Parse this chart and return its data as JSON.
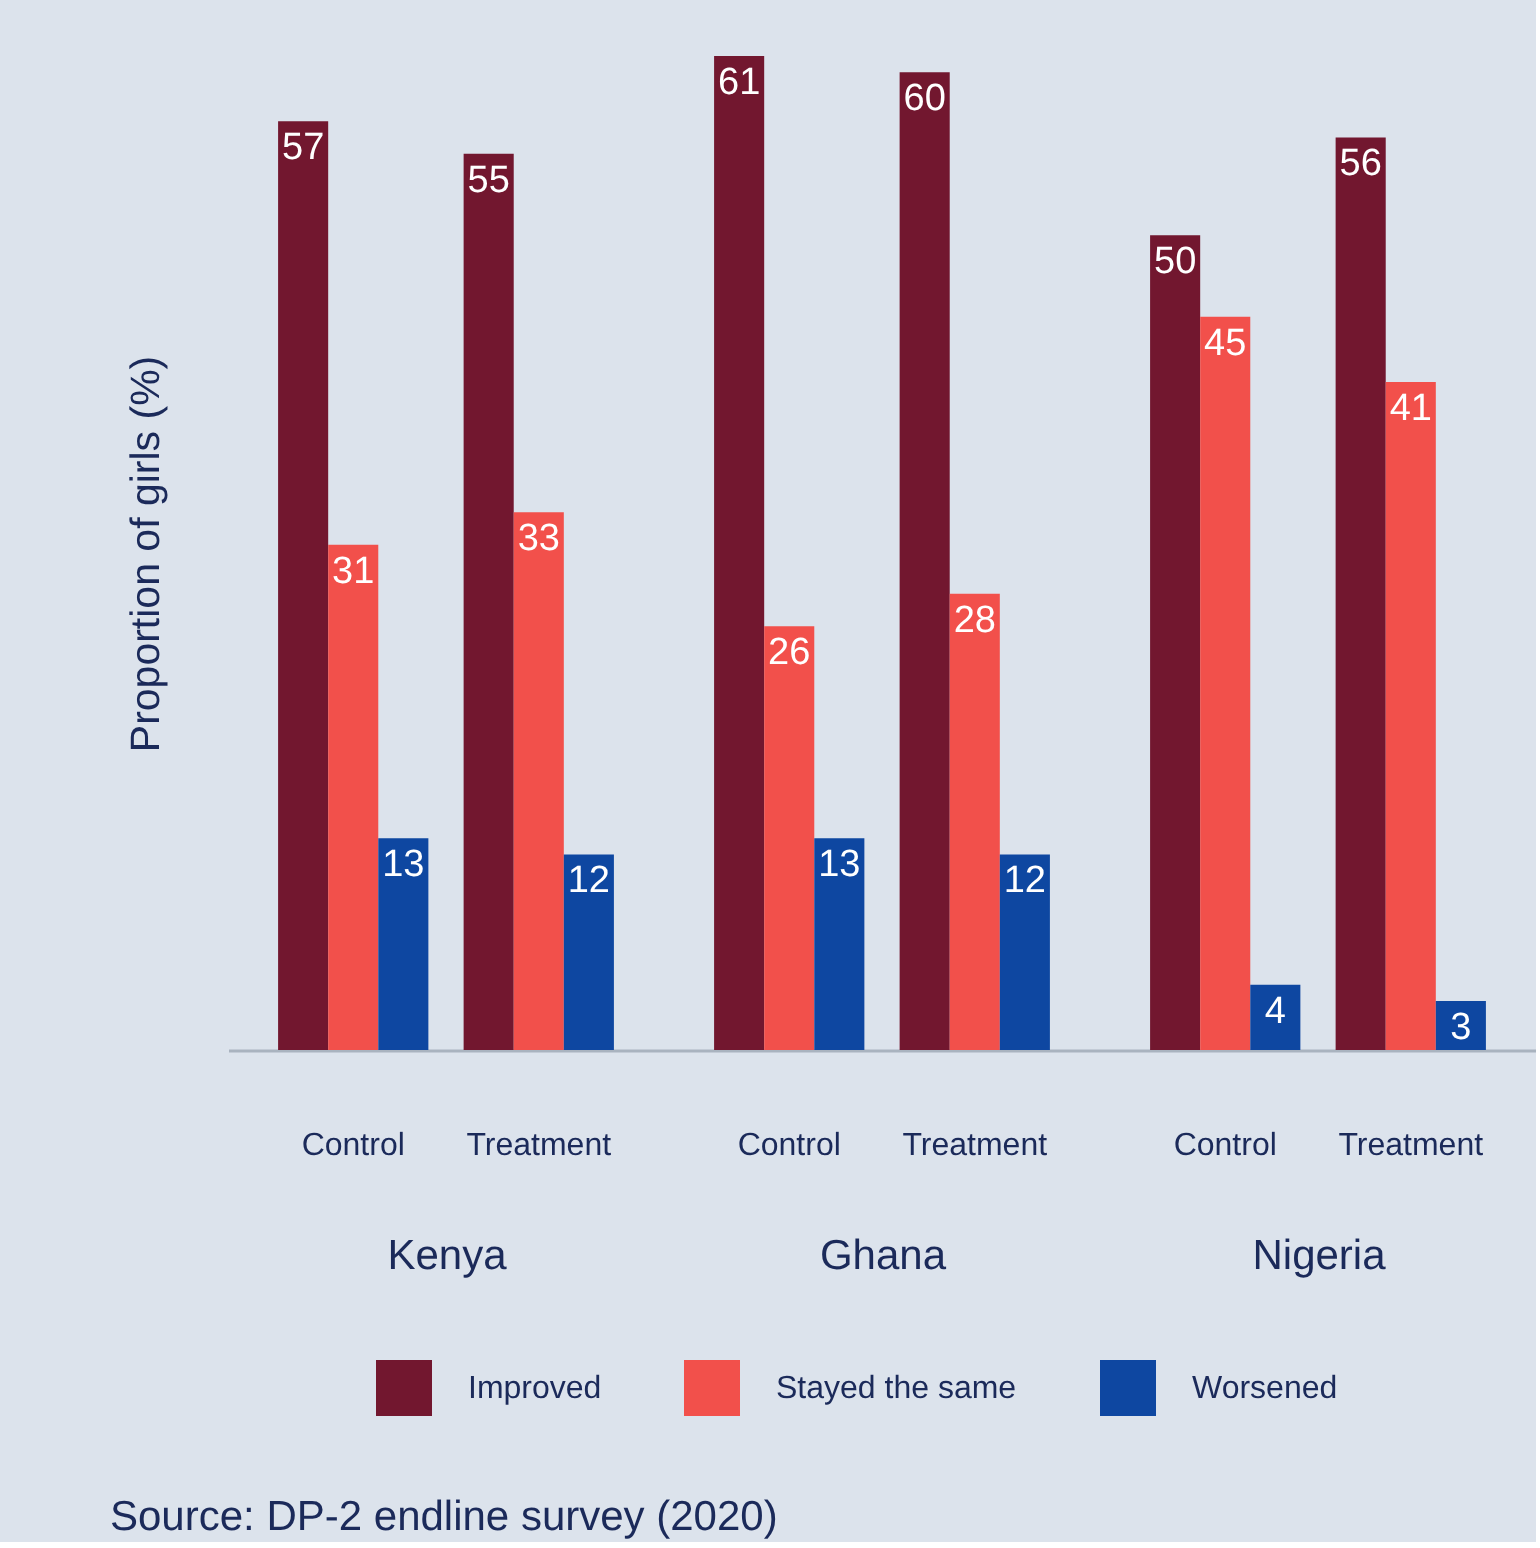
{
  "chart_data": [
    {
      "type": "bar",
      "ylabel": "Proportion of girls (%)",
      "xlabel": "Kenya",
      "categories": [
        "Control",
        "Treatment"
      ],
      "series": [
        {
          "name": "Improved",
          "color": "#72172f",
          "values": [
            57,
            55
          ]
        },
        {
          "name": "Stayed the same",
          "color": "#f2504b",
          "values": [
            31,
            33
          ]
        },
        {
          "name": "Worsened",
          "color": "#0e47a1",
          "values": [
            13,
            12
          ]
        }
      ],
      "data_labels": true,
      "legend": "bottom",
      "annotations": [
        "Source: DP-2 endline survey (2020)"
      ]
    },
    {
      "type": "bar",
      "xlabel": "Ghana",
      "categories": [
        "Control",
        "Treatment"
      ],
      "series": [
        {
          "name": "Improved",
          "color": "#72172f",
          "values": [
            61,
            60
          ]
        },
        {
          "name": "Stayed the same",
          "color": "#f2504b",
          "values": [
            26,
            28
          ]
        },
        {
          "name": "Worsened",
          "color": "#0e47a1",
          "values": [
            13,
            12
          ]
        }
      ],
      "data_labels": true
    },
    {
      "type": "bar",
      "xlabel": "Nigeria",
      "categories": [
        "Control",
        "Treatment"
      ],
      "series": [
        {
          "name": "Improved",
          "color": "#72172f",
          "values": [
            50,
            56
          ]
        },
        {
          "name": "Stayed the same",
          "color": "#f2504b",
          "values": [
            45,
            41
          ]
        },
        {
          "name": "Worsened",
          "color": "#0e47a1",
          "values": [
            4,
            3
          ]
        }
      ],
      "data_labels": true
    }
  ]
}
